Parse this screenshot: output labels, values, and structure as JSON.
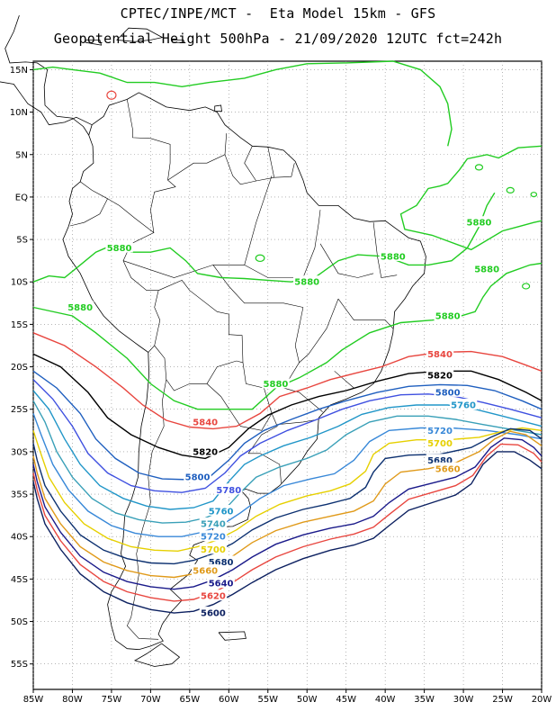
{
  "header": {
    "line1": "CPTEC/INPE/MCT -  Eta Model 15km - GFS",
    "line2": "Geopotential Height 500hPa - 21/09/2020 12UTC fct=242h"
  },
  "axes": {
    "lon_range": [
      -85,
      -20
    ],
    "lat_range": [
      -58,
      16
    ],
    "lon_ticks": [
      {
        "v": -85,
        "label": "85W"
      },
      {
        "v": -80,
        "label": "80W"
      },
      {
        "v": -75,
        "label": "75W"
      },
      {
        "v": -70,
        "label": "70W"
      },
      {
        "v": -65,
        "label": "65W"
      },
      {
        "v": -60,
        "label": "60W"
      },
      {
        "v": -55,
        "label": "55W"
      },
      {
        "v": -50,
        "label": "50W"
      },
      {
        "v": -45,
        "label": "45W"
      },
      {
        "v": -40,
        "label": "40W"
      },
      {
        "v": -35,
        "label": "35W"
      },
      {
        "v": -30,
        "label": "30W"
      },
      {
        "v": -25,
        "label": "25W"
      },
      {
        "v": -20,
        "label": "20W"
      }
    ],
    "lat_ticks": [
      {
        "v": 15,
        "label": "15N"
      },
      {
        "v": 10,
        "label": "10N"
      },
      {
        "v": 5,
        "label": "5N"
      },
      {
        "v": 0,
        "label": "EQ"
      },
      {
        "v": -5,
        "label": "5S"
      },
      {
        "v": -10,
        "label": "10S"
      },
      {
        "v": -15,
        "label": "15S"
      },
      {
        "v": -20,
        "label": "20S"
      },
      {
        "v": -25,
        "label": "25S"
      },
      {
        "v": -30,
        "label": "30S"
      },
      {
        "v": -35,
        "label": "35S"
      },
      {
        "v": -40,
        "label": "40S"
      },
      {
        "v": -45,
        "label": "45S"
      },
      {
        "v": -50,
        "label": "50S"
      },
      {
        "v": -55,
        "label": "55S"
      }
    ],
    "grid": "dotted"
  },
  "contours": [
    {
      "level": "5880",
      "color": "#22cc22",
      "label_at": [
        [
          -74,
          -6
        ],
        [
          -50,
          -10
        ],
        [
          -39,
          -7
        ],
        [
          -79,
          -13
        ],
        [
          -32,
          -14
        ],
        [
          -54,
          -22
        ],
        [
          -28,
          -3
        ],
        [
          -27,
          -8.5
        ]
      ]
    },
    {
      "level": "5840",
      "color": "#e8463f",
      "label_at": [
        [
          -63,
          -26.5
        ],
        [
          -33,
          -18.5
        ]
      ]
    },
    {
      "level": "5820",
      "color": "#000000",
      "label_at": [
        [
          -63,
          -30
        ],
        [
          -33,
          -21
        ]
      ]
    },
    {
      "level": "5800",
      "color": "#1f5fbf",
      "label_at": [
        [
          -64,
          -33
        ],
        [
          -32,
          -23
        ]
      ]
    },
    {
      "level": "5780",
      "color": "#3f50e0",
      "label_at": [
        [
          -60,
          -34.5
        ]
      ]
    },
    {
      "level": "5760",
      "color": "#2196c8",
      "label_at": [
        [
          -61,
          -37
        ],
        [
          -30,
          -24.5
        ]
      ]
    },
    {
      "level": "5740",
      "color": "#3aa0b8",
      "label_at": [
        [
          -62,
          -38.5
        ]
      ]
    },
    {
      "level": "5720",
      "color": "#3888d8",
      "label_at": [
        [
          -62,
          -40
        ],
        [
          -33,
          -27.5
        ]
      ]
    },
    {
      "level": "5700",
      "color": "#e6d000",
      "label_at": [
        [
          -62,
          -41.5
        ],
        [
          -33,
          -29
        ]
      ]
    },
    {
      "level": "5680",
      "color": "#0c3070",
      "label_at": [
        [
          -61,
          -43
        ],
        [
          -33,
          -31
        ]
      ]
    },
    {
      "level": "5660",
      "color": "#e09a1a",
      "label_at": [
        [
          -63,
          -44
        ],
        [
          -32,
          -32
        ]
      ]
    },
    {
      "level": "5640",
      "color": "#1a1a8a",
      "label_at": [
        [
          -61,
          -45.5
        ]
      ]
    },
    {
      "level": "5620",
      "color": "#e8463f",
      "label_at": [
        [
          -62,
          -47
        ]
      ]
    },
    {
      "level": "5600",
      "color": "#0c2060",
      "label_at": [
        [
          -62,
          -49
        ]
      ]
    }
  ],
  "colors": {
    "land_outline": "#000000",
    "frame": "#000000",
    "grid": "#888888"
  }
}
